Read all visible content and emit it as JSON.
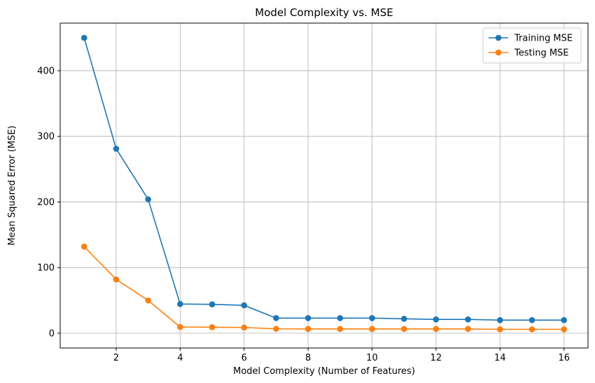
{
  "chart_data": {
    "type": "line",
    "title": "Model Complexity vs. MSE",
    "xlabel": "Model Complexity (Number of Features)",
    "ylabel": "Mean Squared Error (MSE)",
    "xlim": [
      0.25,
      16.75
    ],
    "ylim": [
      -22.5,
      472.5
    ],
    "xticks": [
      2,
      4,
      6,
      8,
      10,
      12,
      14,
      16
    ],
    "yticks": [
      0,
      100,
      200,
      300,
      400
    ],
    "grid": true,
    "legend_position": "top-right",
    "x": [
      1,
      2,
      3,
      4,
      5,
      6,
      7,
      8,
      9,
      10,
      11,
      12,
      13,
      14,
      15,
      16
    ],
    "series": [
      {
        "name": "Training MSE",
        "color": "#1f77b4",
        "values": [
          450,
          281,
          204,
          44.5,
          44,
          42.5,
          23,
          23,
          23,
          23,
          22,
          21,
          21,
          20,
          20,
          20
        ]
      },
      {
        "name": "Testing MSE",
        "color": "#ff7f0e",
        "values": [
          132,
          82,
          50,
          9.5,
          9.2,
          8.7,
          6.7,
          6.5,
          6.5,
          6.5,
          6.5,
          6.5,
          6.5,
          5.9,
          5.9,
          5.9
        ]
      }
    ]
  }
}
